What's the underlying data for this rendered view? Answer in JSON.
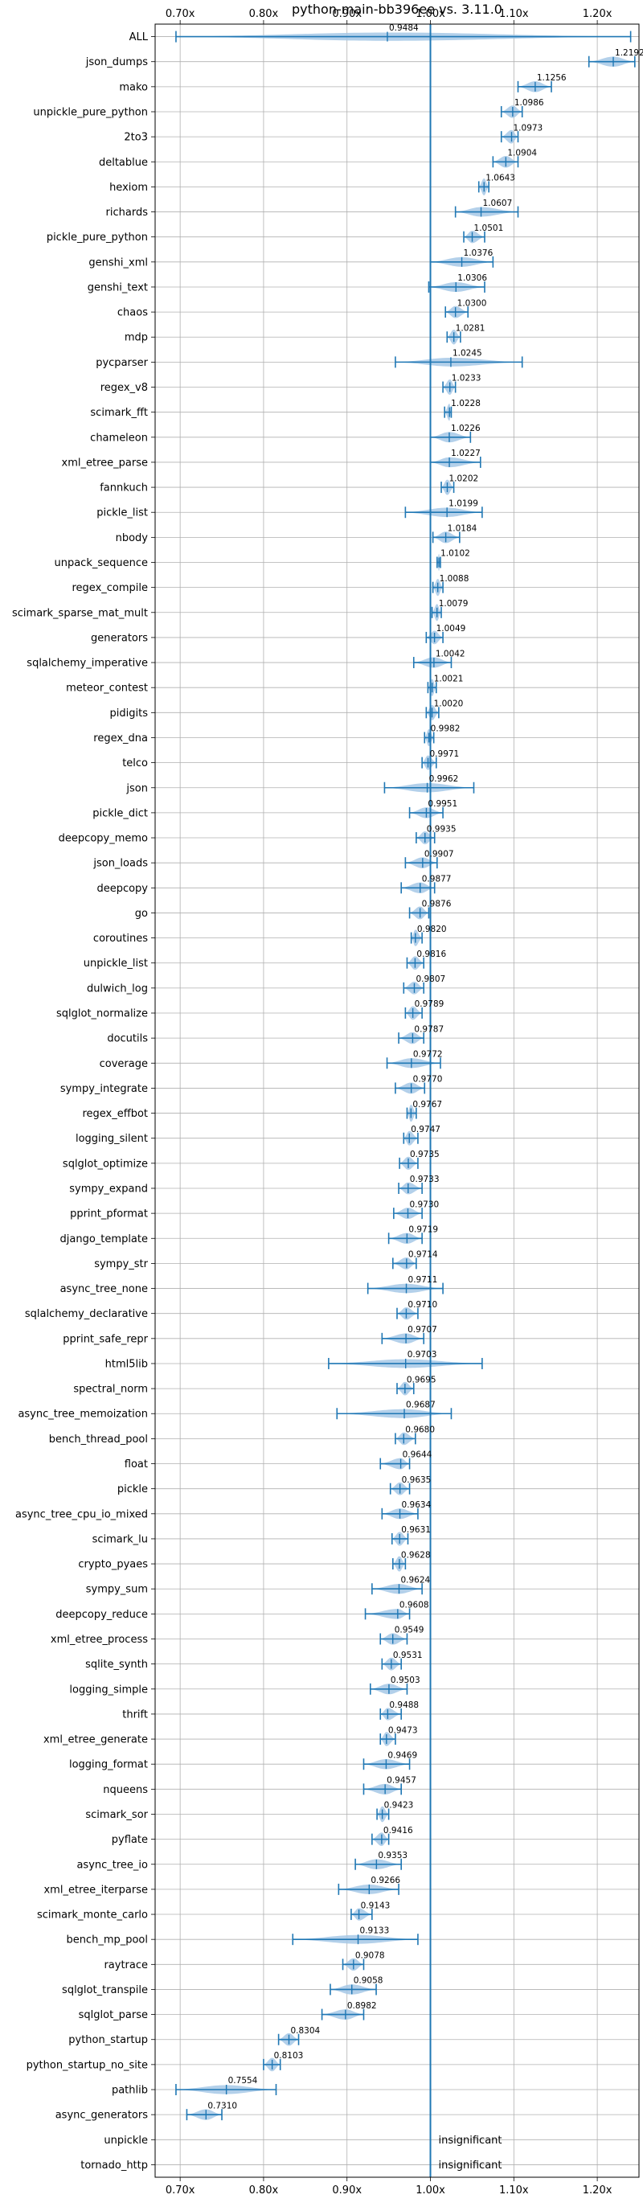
{
  "chart_data": {
    "type": "violin",
    "title": "python-main-bb396ee vs. 3.11.0",
    "xlim": [
      0.67,
      1.25
    ],
    "xticks": [
      0.7,
      0.8,
      0.9,
      1.0,
      1.1,
      1.2
    ],
    "xtick_labels": [
      "0.70x",
      "0.80x",
      "0.90x",
      "1.00x",
      "1.10x",
      "1.20x"
    ],
    "reference_line": 1.0,
    "grid": true,
    "categories": [
      "ALL",
      "json_dumps",
      "mako",
      "unpickle_pure_python",
      "2to3",
      "deltablue",
      "hexiom",
      "richards",
      "pickle_pure_python",
      "genshi_xml",
      "genshi_text",
      "chaos",
      "mdp",
      "pycparser",
      "regex_v8",
      "scimark_fft",
      "chameleon",
      "xml_etree_parse",
      "fannkuch",
      "pickle_list",
      "nbody",
      "unpack_sequence",
      "regex_compile",
      "scimark_sparse_mat_mult",
      "generators",
      "sqlalchemy_imperative",
      "meteor_contest",
      "pidigits",
      "regex_dna",
      "telco",
      "json",
      "pickle_dict",
      "deepcopy_memo",
      "json_loads",
      "deepcopy",
      "go",
      "coroutines",
      "unpickle_list",
      "dulwich_log",
      "sqlglot_normalize",
      "docutils",
      "coverage",
      "sympy_integrate",
      "regex_effbot",
      "logging_silent",
      "sqlglot_optimize",
      "sympy_expand",
      "pprint_pformat",
      "django_template",
      "sympy_str",
      "async_tree_none",
      "sqlalchemy_declarative",
      "pprint_safe_repr",
      "html5lib",
      "spectral_norm",
      "async_tree_memoization",
      "bench_thread_pool",
      "float",
      "pickle",
      "async_tree_cpu_io_mixed",
      "scimark_lu",
      "crypto_pyaes",
      "sympy_sum",
      "deepcopy_reduce",
      "xml_etree_process",
      "sqlite_synth",
      "logging_simple",
      "thrift",
      "xml_etree_generate",
      "logging_format",
      "nqueens",
      "scimark_sor",
      "pyflate",
      "async_tree_io",
      "xml_etree_iterparse",
      "scimark_monte_carlo",
      "bench_mp_pool",
      "raytrace",
      "sqlglot_transpile",
      "sqlglot_parse",
      "python_startup",
      "python_startup_no_site",
      "pathlib",
      "async_generators",
      "unpickle",
      "tornado_http"
    ],
    "values": [
      0.9484,
      1.2192,
      1.1256,
      1.0986,
      1.0973,
      1.0904,
      1.0643,
      1.0607,
      1.0501,
      1.0376,
      1.0306,
      1.03,
      1.0281,
      1.0245,
      1.0233,
      1.0228,
      1.0226,
      1.0227,
      1.0202,
      1.0199,
      1.0184,
      1.0102,
      1.0088,
      1.0079,
      1.0049,
      1.0042,
      1.0021,
      1.002,
      0.9982,
      0.9971,
      0.9962,
      0.9951,
      0.9935,
      0.9907,
      0.9877,
      0.9876,
      0.982,
      0.9816,
      0.9807,
      0.9789,
      0.9787,
      0.9772,
      0.977,
      0.9767,
      0.9747,
      0.9735,
      0.9733,
      0.973,
      0.9719,
      0.9714,
      0.9711,
      0.971,
      0.9707,
      0.9703,
      0.9695,
      0.9687,
      0.968,
      0.9644,
      0.9635,
      0.9634,
      0.9631,
      0.9628,
      0.9624,
      0.9608,
      0.9549,
      0.9531,
      0.9503,
      0.9488,
      0.9473,
      0.9469,
      0.9457,
      0.9423,
      0.9416,
      0.9353,
      0.9266,
      0.9143,
      0.9133,
      0.9078,
      0.9058,
      0.8982,
      0.8304,
      0.8103,
      0.7554,
      0.731,
      null,
      null
    ],
    "value_labels": [
      "0.9484",
      "1.2192",
      "1.1256",
      "1.0986",
      "1.0973",
      "1.0904",
      "1.0643",
      "1.0607",
      "1.0501",
      "1.0376",
      "1.0306",
      "1.0300",
      "1.0281",
      "1.0245",
      "1.0233",
      "1.0228",
      "1.0226",
      "1.0227",
      "1.0202",
      "1.0199",
      "1.0184",
      "1.0102",
      "1.0088",
      "1.0079",
      "1.0049",
      "1.0042",
      "1.0021",
      "1.0020",
      "0.9982",
      "0.9971",
      "0.9962",
      "0.9951",
      "0.9935",
      "0.9907",
      "0.9877",
      "0.9876",
      "0.9820",
      "0.9816",
      "0.9807",
      "0.9789",
      "0.9787",
      "0.9772",
      "0.9770",
      "0.9767",
      "0.9747",
      "0.9735",
      "0.9733",
      "0.9730",
      "0.9719",
      "0.9714",
      "0.9711",
      "0.9710",
      "0.9707",
      "0.9703",
      "0.9695",
      "0.9687",
      "0.9680",
      "0.9644",
      "0.9635",
      "0.9634",
      "0.9631",
      "0.9628",
      "0.9624",
      "0.9608",
      "0.9549",
      "0.9531",
      "0.9503",
      "0.9488",
      "0.9473",
      "0.9469",
      "0.9457",
      "0.9423",
      "0.9416",
      "0.9353",
      "0.9266",
      "0.9143",
      "0.9133",
      "0.9078",
      "0.9058",
      "0.8982",
      "0.8304",
      "0.8103",
      "0.7554",
      "0.7310",
      "",
      ""
    ],
    "ranges": [
      [
        0.695,
        1.24
      ],
      [
        1.19,
        1.245
      ],
      [
        1.105,
        1.145
      ],
      [
        1.085,
        1.11
      ],
      [
        1.085,
        1.105
      ],
      [
        1.075,
        1.105
      ],
      [
        1.058,
        1.07
      ],
      [
        1.03,
        1.105
      ],
      [
        1.04,
        1.065
      ],
      [
        1.0,
        1.075
      ],
      [
        0.998,
        1.065
      ],
      [
        1.018,
        1.045
      ],
      [
        1.02,
        1.036
      ],
      [
        0.958,
        1.11
      ],
      [
        1.015,
        1.03
      ],
      [
        1.017,
        1.025
      ],
      [
        1.0,
        1.048
      ],
      [
        1.0,
        1.06
      ],
      [
        1.013,
        1.028
      ],
      [
        0.97,
        1.062
      ],
      [
        1.003,
        1.035
      ],
      [
        1.008,
        1.012
      ],
      [
        1.003,
        1.015
      ],
      [
        1.002,
        1.013
      ],
      [
        0.995,
        1.015
      ],
      [
        0.98,
        1.025
      ],
      [
        0.997,
        1.007
      ],
      [
        0.995,
        1.01
      ],
      [
        0.993,
        1.004
      ],
      [
        0.99,
        1.007
      ],
      [
        0.945,
        1.052
      ],
      [
        0.975,
        1.015
      ],
      [
        0.983,
        1.005
      ],
      [
        0.97,
        1.008
      ],
      [
        0.965,
        1.005
      ],
      [
        0.975,
        0.998
      ],
      [
        0.977,
        0.99
      ],
      [
        0.972,
        0.992
      ],
      [
        0.968,
        0.992
      ],
      [
        0.97,
        0.99
      ],
      [
        0.962,
        0.992
      ],
      [
        0.948,
        1.012
      ],
      [
        0.958,
        0.993
      ],
      [
        0.972,
        0.983
      ],
      [
        0.968,
        0.985
      ],
      [
        0.963,
        0.985
      ],
      [
        0.962,
        0.99
      ],
      [
        0.956,
        0.99
      ],
      [
        0.95,
        0.99
      ],
      [
        0.955,
        0.983
      ],
      [
        0.925,
        1.015
      ],
      [
        0.96,
        0.985
      ],
      [
        0.942,
        0.992
      ],
      [
        0.878,
        1.062
      ],
      [
        0.96,
        0.98
      ],
      [
        0.888,
        1.025
      ],
      [
        0.958,
        0.982
      ],
      [
        0.94,
        0.975
      ],
      [
        0.952,
        0.975
      ],
      [
        0.942,
        0.985
      ],
      [
        0.954,
        0.973
      ],
      [
        0.955,
        0.97
      ],
      [
        0.93,
        0.99
      ],
      [
        0.922,
        0.975
      ],
      [
        0.94,
        0.972
      ],
      [
        0.942,
        0.965
      ],
      [
        0.928,
        0.972
      ],
      [
        0.94,
        0.965
      ],
      [
        0.94,
        0.958
      ],
      [
        0.92,
        0.975
      ],
      [
        0.92,
        0.965
      ],
      [
        0.936,
        0.95
      ],
      [
        0.93,
        0.95
      ],
      [
        0.91,
        0.965
      ],
      [
        0.89,
        0.962
      ],
      [
        0.905,
        0.93
      ],
      [
        0.835,
        0.985
      ],
      [
        0.895,
        0.92
      ],
      [
        0.88,
        0.935
      ],
      [
        0.87,
        0.92
      ],
      [
        0.818,
        0.842
      ],
      [
        0.8,
        0.82
      ],
      [
        0.695,
        0.815
      ],
      [
        0.708,
        0.75
      ],
      null,
      null
    ],
    "annotations": [
      {
        "category": "unpickle",
        "text": "insignificant"
      },
      {
        "category": "tornado_http",
        "text": "insignificant"
      }
    ],
    "colors": {
      "violin": "#a6c8e6",
      "line": "#1f77b4",
      "grid": "#b0b0b0"
    }
  }
}
